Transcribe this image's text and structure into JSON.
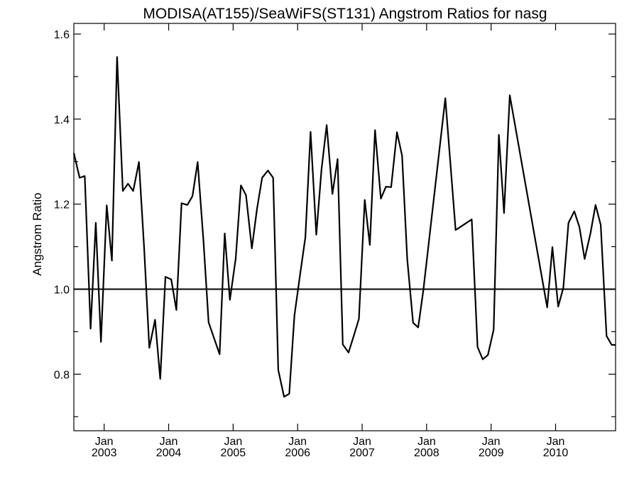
{
  "chart_data": {
    "type": "line",
    "title": "MODISA(AT155)/SeaWiFS(ST131)  Angstrom Ratios for nasg",
    "xlabel": "",
    "ylabel": "Angstrom Ratio",
    "xlim": [
      2002.53,
      2010.93
    ],
    "ylim": [
      0.667,
      1.625
    ],
    "yticks": [
      0.8,
      1.0,
      1.2,
      1.4,
      1.6
    ],
    "ytick_labels": [
      "0.8",
      "1.0",
      "1.2",
      "1.4",
      "1.6"
    ],
    "xticks": [
      {
        "year": 2003,
        "month": "Jan",
        "label": "2003"
      },
      {
        "year": 2004,
        "month": "Jan",
        "label": "2004"
      },
      {
        "year": 2005,
        "month": "Jan",
        "label": "2005"
      },
      {
        "year": 2006,
        "month": "Jan",
        "label": "2006"
      },
      {
        "year": 2007,
        "month": "Jan",
        "label": "2007"
      },
      {
        "year": 2008,
        "month": "Jan",
        "label": "2008"
      },
      {
        "year": 2009,
        "month": "Jan",
        "label": "2009"
      },
      {
        "year": 2010,
        "month": "Jan",
        "label": "2010"
      }
    ],
    "reference_line": 1.0,
    "grid": false,
    "series": [
      {
        "color": "#000000",
        "x": [
          2002.53,
          2002.62,
          2002.7,
          2002.79,
          2002.87,
          2002.95,
          2003.04,
          2003.12,
          2003.2,
          2003.29,
          2003.37,
          2003.45,
          2003.54,
          2003.62,
          2003.7,
          2003.79,
          2003.87,
          2003.95,
          2004.04,
          2004.12,
          2004.2,
          2004.29,
          2004.37,
          2004.45,
          2004.54,
          2004.62,
          2004.79,
          2004.87,
          2004.95,
          2005.04,
          2005.12,
          2005.2,
          2005.29,
          2005.37,
          2005.45,
          2005.54,
          2005.62,
          2005.7,
          2005.79,
          2005.87,
          2005.95,
          2006.04,
          2006.12,
          2006.2,
          2006.29,
          2006.37,
          2006.45,
          2006.54,
          2006.62,
          2006.7,
          2006.79,
          2006.87,
          2006.95,
          2007.04,
          2007.12,
          2007.2,
          2007.29,
          2007.37,
          2007.45,
          2007.54,
          2007.62,
          2007.7,
          2007.79,
          2007.87,
          2007.95,
          2008.29,
          2008.45,
          2008.7,
          2008.79,
          2008.87,
          2008.95,
          2009.04,
          2009.12,
          2009.2,
          2009.29,
          2009.87,
          2009.95,
          2010.04,
          2010.12,
          2010.2,
          2010.29,
          2010.37,
          2010.45,
          2010.54,
          2010.62,
          2010.7,
          2010.79,
          2010.87,
          2010.93
        ],
        "y": [
          1.32,
          1.262,
          1.266,
          0.907,
          1.156,
          0.876,
          1.197,
          1.067,
          1.546,
          1.231,
          1.248,
          1.231,
          1.299,
          1.097,
          0.862,
          0.928,
          0.789,
          1.029,
          1.023,
          0.951,
          1.202,
          1.198,
          1.219,
          1.299,
          1.113,
          0.922,
          0.847,
          1.131,
          0.975,
          1.072,
          1.244,
          1.221,
          1.096,
          1.189,
          1.262,
          1.279,
          1.262,
          0.81,
          0.747,
          0.754,
          0.938,
          1.036,
          1.122,
          1.37,
          1.128,
          1.281,
          1.386,
          1.224,
          1.306,
          0.87,
          0.851,
          0.89,
          0.93,
          1.21,
          1.104,
          1.374,
          1.213,
          1.241,
          1.24,
          1.369,
          1.314,
          1.07,
          0.921,
          0.91,
          0.998,
          1.449,
          1.139,
          1.164,
          0.864,
          0.835,
          0.845,
          0.905,
          1.363,
          1.179,
          1.456,
          0.957,
          1.099,
          0.959,
          1.003,
          1.156,
          1.183,
          1.146,
          1.071,
          1.131,
          1.198,
          1.151,
          0.89,
          0.869,
          0.869
        ]
      }
    ]
  }
}
